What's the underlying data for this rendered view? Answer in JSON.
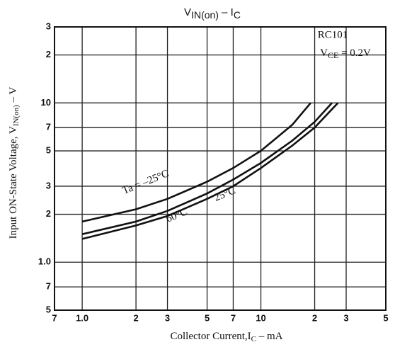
{
  "chart_data": {
    "type": "line",
    "title": [
      "V",
      "IN(on)",
      "  –  I",
      "C"
    ],
    "x_label": [
      "Collector Current,I",
      "C",
      " – mA"
    ],
    "y_label": [
      "Input ON-State Voltage, V",
      "IN(on)",
      " – V"
    ],
    "annotations": {
      "device": "RC101",
      "condition": [
        "V",
        "CE",
        " = 0.2V"
      ]
    },
    "log_x": true,
    "log_y": true,
    "grid": true,
    "xlim": [
      0.7,
      50
    ],
    "xticks": [
      {
        "value": 0.7,
        "label": "7"
      },
      {
        "value": 1,
        "label": "1.0"
      },
      2,
      3,
      5,
      7,
      10,
      {
        "value": 20,
        "label": "2"
      },
      {
        "value": 30,
        "label": "3"
      },
      {
        "value": 50,
        "label": "5"
      }
    ],
    "ylim": [
      0.5,
      30
    ],
    "yticks": [
      {
        "value": 0.5,
        "label": "5"
      },
      {
        "value": 0.7,
        "label": "7"
      },
      {
        "value": 1,
        "label": "1.0"
      },
      2,
      3,
      5,
      7,
      10,
      {
        "value": 20,
        "label": "2"
      },
      {
        "value": 30,
        "label": "3"
      }
    ],
    "series": [
      {
        "name": "Ta = –25°C",
        "color": "#111111",
        "x": [
          1,
          2,
          3,
          5,
          7,
          10,
          15,
          19
        ],
        "values": [
          1.8,
          2.15,
          2.5,
          3.2,
          3.9,
          5.0,
          7.3,
          10
        ]
      },
      {
        "name": "25°C",
        "color": "#111111",
        "x": [
          1,
          2,
          3,
          5,
          7,
          10,
          15,
          20,
          25
        ],
        "values": [
          1.5,
          1.8,
          2.1,
          2.7,
          3.3,
          4.2,
          5.8,
          7.6,
          10
        ]
      },
      {
        "name": "60°C",
        "color": "#111111",
        "x": [
          1,
          2,
          3,
          5,
          7,
          10,
          15,
          20,
          27
        ],
        "values": [
          1.4,
          1.7,
          1.95,
          2.5,
          3.0,
          3.9,
          5.4,
          7.0,
          10
        ]
      }
    ]
  }
}
